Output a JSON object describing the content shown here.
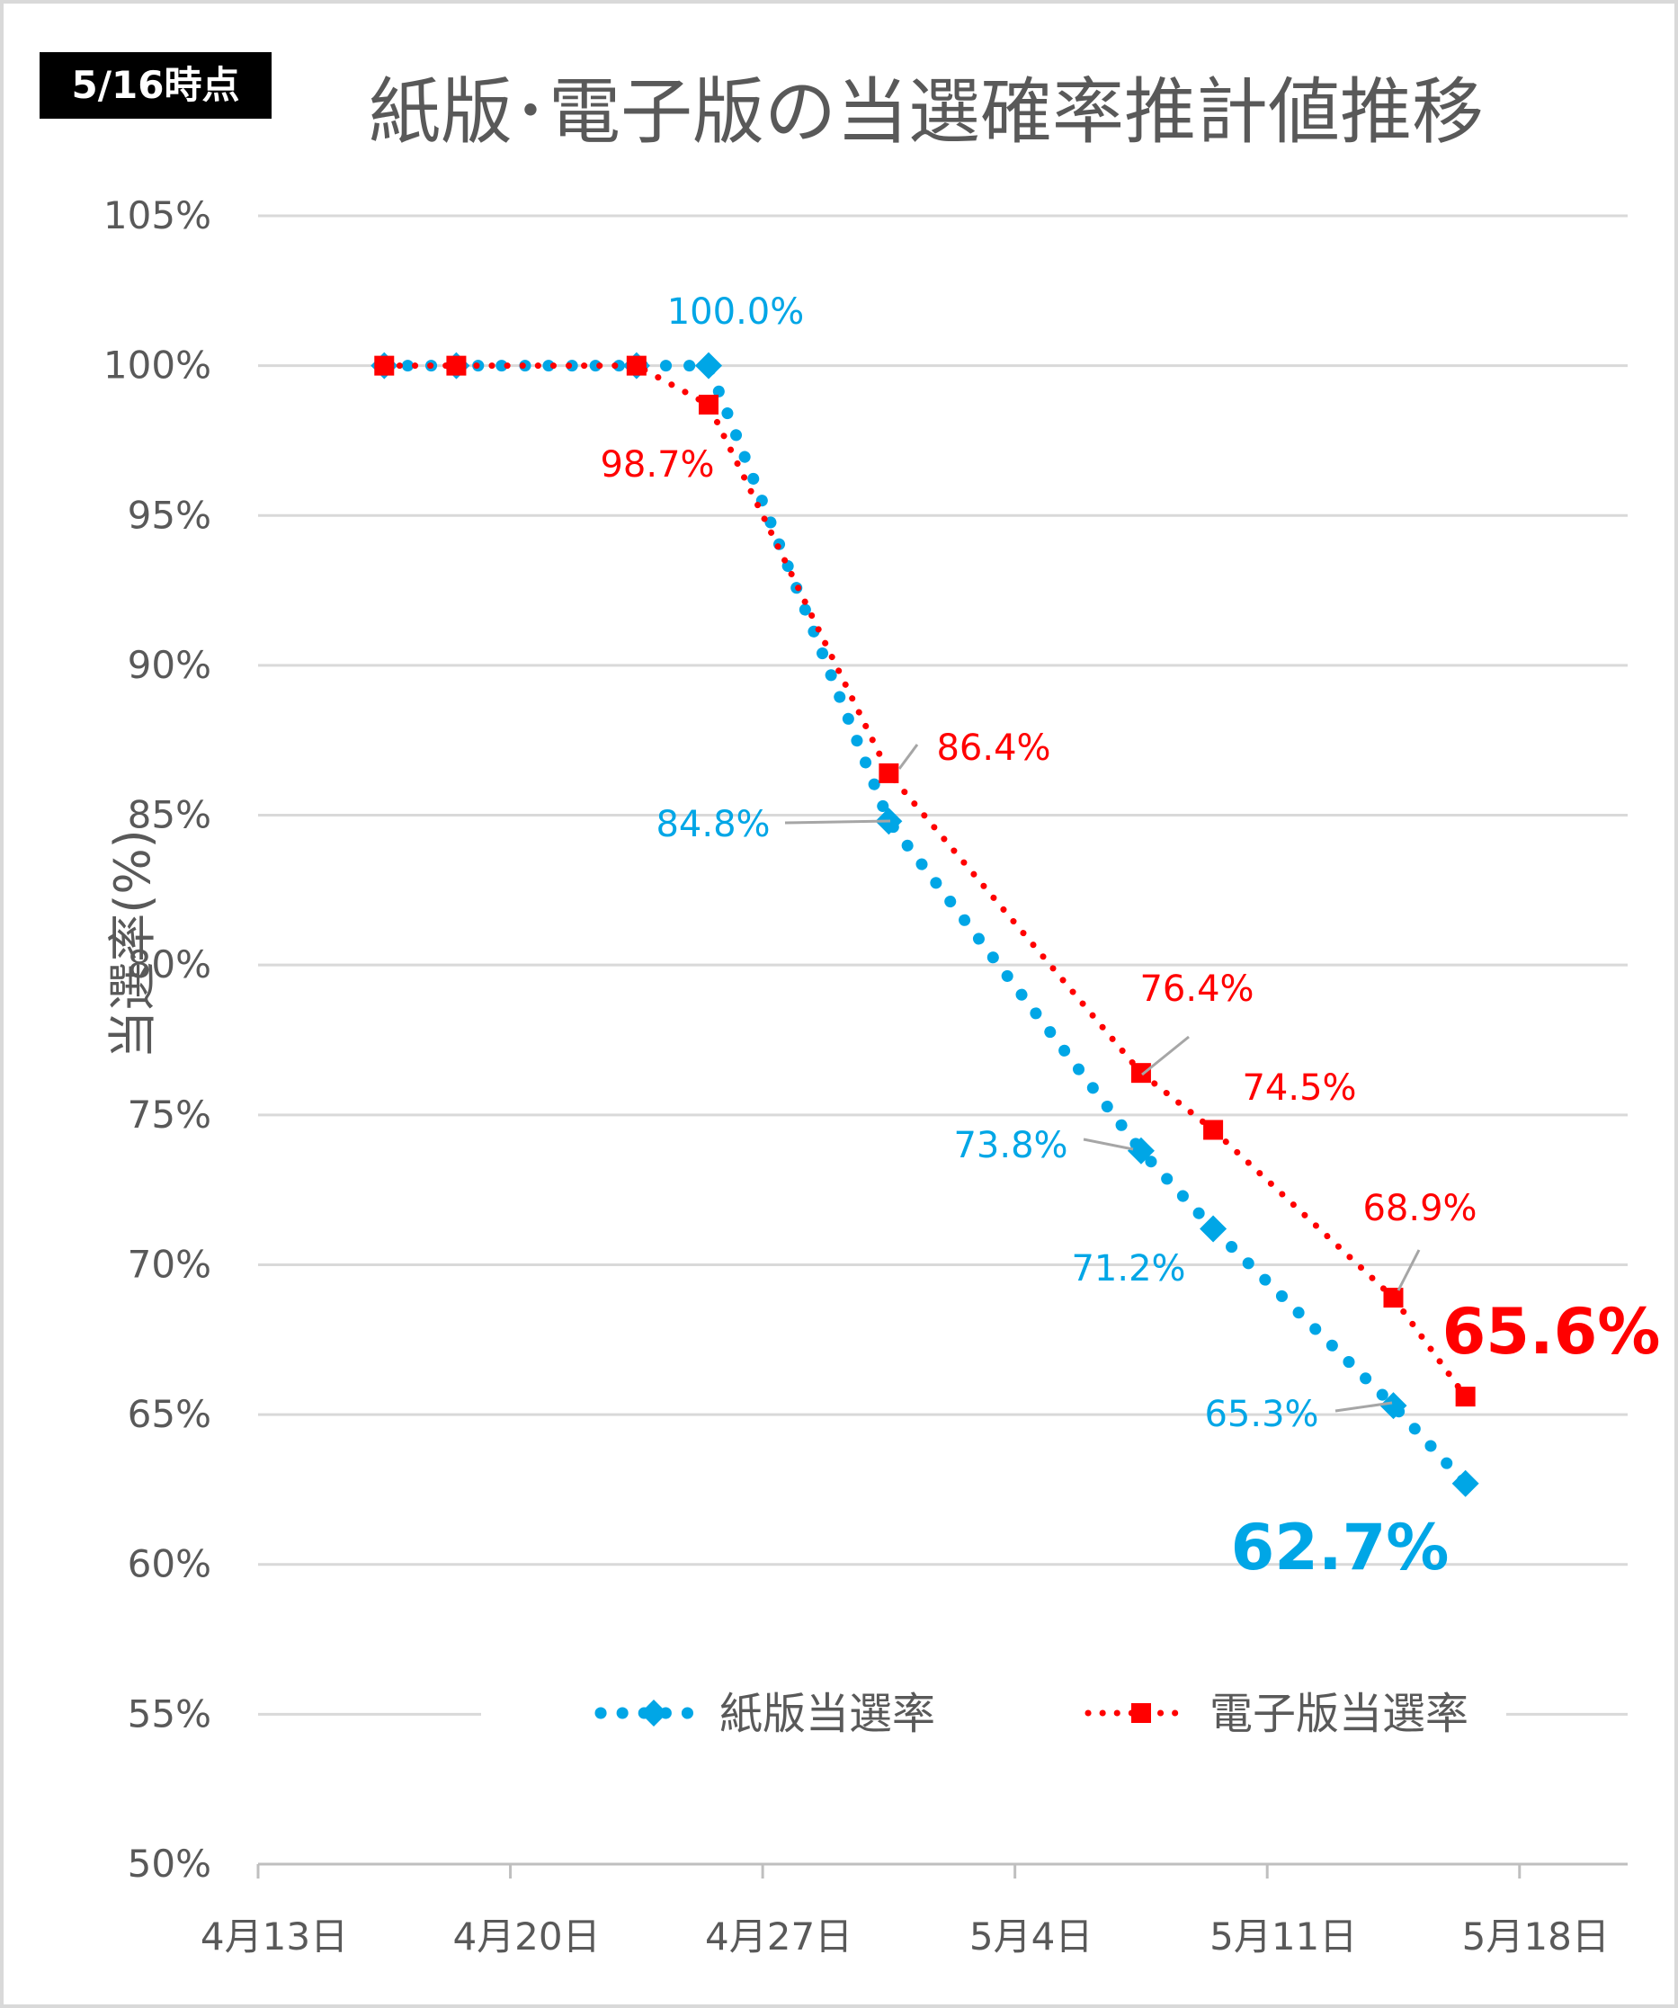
{
  "badge": "5/16時点",
  "chart_data": {
    "type": "line",
    "title": "紙版･電子版の当選確率推計値推移",
    "xlabel": "",
    "ylabel": "当選率(%)",
    "ylim": [
      50,
      105
    ],
    "y_ticks": [
      50,
      55,
      60,
      65,
      70,
      75,
      80,
      85,
      90,
      95,
      100,
      105
    ],
    "y_tick_labels": [
      "50%",
      "55%",
      "60%",
      "65%",
      "70%",
      "75%",
      "80%",
      "85%",
      "90%",
      "95%",
      "100%",
      "105%"
    ],
    "x_tick_labels": [
      "4月13日",
      "4月20日",
      "4月27日",
      "5月4日",
      "5月11日",
      "5月18日"
    ],
    "x_ticks_day": [
      0,
      7,
      14,
      21,
      28,
      35
    ],
    "x_range_day": [
      0,
      38
    ],
    "grid": true,
    "legend_position": "bottom-inside",
    "series": [
      {
        "name": "紙版当選率",
        "color": "#00a6e6",
        "marker": "diamond",
        "day": [
          3.5,
          5.5,
          10.5,
          12.5,
          17.5,
          24.5,
          26.5,
          31.5,
          33.5
        ],
        "values": [
          100.0,
          100.0,
          100.0,
          100.0,
          84.8,
          73.8,
          71.2,
          65.3,
          62.7
        ],
        "labels": [
          "",
          "",
          "",
          "100.0%",
          "84.8%",
          "73.8%",
          "71.2%",
          "65.3%",
          "62.7%"
        ]
      },
      {
        "name": "電子版当選率",
        "color": "#ff0000",
        "marker": "square",
        "day": [
          3.5,
          5.5,
          10.5,
          12.5,
          17.5,
          24.5,
          26.5,
          31.5,
          33.5
        ],
        "values": [
          100.0,
          100.0,
          100.0,
          98.7,
          86.4,
          76.4,
          74.5,
          68.9,
          65.6
        ],
        "labels": [
          "",
          "",
          "",
          "98.7%",
          "86.4%",
          "76.4%",
          "74.5%",
          "68.9%",
          "65.6%"
        ]
      }
    ]
  }
}
